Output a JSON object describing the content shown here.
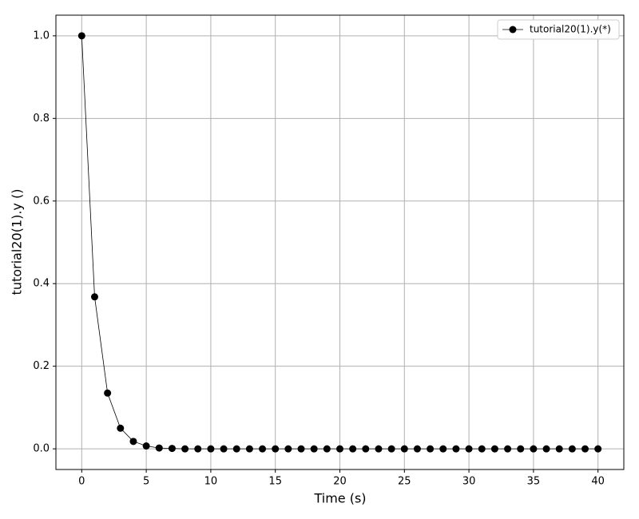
{
  "chart_data": {
    "type": "line",
    "xlabel": "Time (s)",
    "ylabel": "tutorial20(1).y ()",
    "x": [
      0,
      1,
      2,
      3,
      4,
      5,
      6,
      7,
      8,
      9,
      10,
      11,
      12,
      13,
      14,
      15,
      16,
      17,
      18,
      19,
      20,
      21,
      22,
      23,
      24,
      25,
      26,
      27,
      28,
      29,
      30,
      31,
      32,
      33,
      34,
      35,
      36,
      37,
      38,
      39,
      40
    ],
    "series": [
      {
        "name": "tutorial20(1).y(*)",
        "color": "#000000",
        "values": [
          1.0,
          0.368,
          0.135,
          0.05,
          0.018,
          0.007,
          0.002,
          0.001,
          0,
          0,
          0,
          0,
          0,
          0,
          0,
          0,
          0,
          0,
          0,
          0,
          0,
          0,
          0,
          0,
          0,
          0,
          0,
          0,
          0,
          0,
          0,
          0,
          0,
          0,
          0,
          0,
          0,
          0,
          0,
          0,
          0
        ]
      }
    ],
    "xlim": [
      -2,
      42
    ],
    "ylim": [
      -0.05,
      1.05
    ],
    "xticks": [
      0,
      5,
      10,
      15,
      20,
      25,
      30,
      35,
      40
    ],
    "yticks": [
      {
        "value": 0,
        "label": "0.0"
      },
      {
        "value": 0.2,
        "label": "0.2"
      },
      {
        "value": 0.4,
        "label": "0.4"
      },
      {
        "value": 0.6,
        "label": "0.6"
      },
      {
        "value": 0.8,
        "label": "0.8"
      },
      {
        "value": 1.0,
        "label": "1.0"
      }
    ],
    "grid": true,
    "legend": "upper right"
  }
}
